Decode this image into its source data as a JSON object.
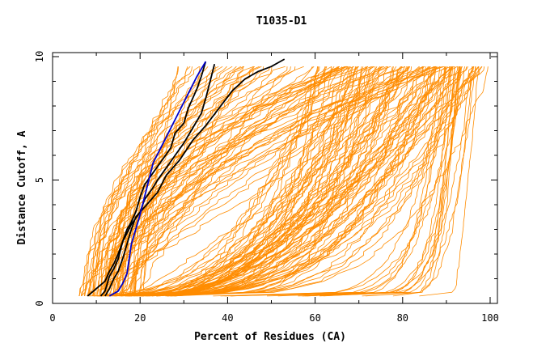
{
  "chart_data": {
    "type": "line",
    "title": "T1035-D1",
    "xlabel": "Percent of Residues (CA)",
    "ylabel": "Distance Cutoff, A",
    "xlim": [
      0,
      100
    ],
    "ylim": [
      0,
      10
    ],
    "x_ticks": [
      "0",
      "20",
      "40",
      "60",
      "80",
      "100"
    ],
    "y_ticks": [
      "0",
      "5",
      "10"
    ],
    "grid": false,
    "colors": {
      "background_models": "#ff8c00",
      "highlight_black": "#000000",
      "highlight_blue": "#0000cc"
    },
    "highlight_series": [
      {
        "color": "#000000",
        "points": [
          [
            8,
            0.3
          ],
          [
            10,
            0.6
          ],
          [
            12,
            0.9
          ],
          [
            13,
            1.3
          ],
          [
            14,
            1.6
          ],
          [
            15,
            2
          ],
          [
            16,
            2.5
          ],
          [
            17,
            3
          ],
          [
            18,
            3.3
          ],
          [
            19,
            3.7
          ],
          [
            20,
            4.3
          ],
          [
            21,
            4.8
          ],
          [
            23,
            5.3
          ],
          [
            25,
            5.8
          ],
          [
            27,
            6.3
          ],
          [
            28,
            6.9
          ],
          [
            30,
            7.3
          ],
          [
            31,
            7.9
          ],
          [
            33,
            8.7
          ],
          [
            34,
            9.2
          ],
          [
            35,
            9.8
          ]
        ]
      },
      {
        "color": "#000000",
        "points": [
          [
            11,
            0.3
          ],
          [
            12,
            0.5
          ],
          [
            13,
            1.1
          ],
          [
            14,
            1.4
          ],
          [
            15,
            1.8
          ],
          [
            16,
            2.5
          ],
          [
            18,
            3.2
          ],
          [
            20,
            3.7
          ],
          [
            21,
            4.2
          ],
          [
            23,
            4.7
          ],
          [
            24,
            5
          ],
          [
            26,
            5.5
          ],
          [
            28,
            6
          ],
          [
            30,
            6.5
          ],
          [
            32,
            7.1
          ],
          [
            34,
            7.7
          ],
          [
            35,
            8.3
          ],
          [
            36,
            9
          ],
          [
            37,
            9.7
          ]
        ]
      },
      {
        "color": "#000000",
        "points": [
          [
            12,
            0.3
          ],
          [
            13,
            0.6
          ],
          [
            14,
            1
          ],
          [
            15,
            1.3
          ],
          [
            16,
            1.8
          ],
          [
            17,
            2.4
          ],
          [
            18,
            3
          ],
          [
            19,
            3.5
          ],
          [
            21,
            3.9
          ],
          [
            24,
            4.5
          ],
          [
            26,
            5.2
          ],
          [
            29,
            5.8
          ],
          [
            32,
            6.6
          ],
          [
            35,
            7.2
          ],
          [
            38,
            7.9
          ],
          [
            41,
            8.6
          ],
          [
            44,
            9.1
          ],
          [
            47,
            9.4
          ],
          [
            50,
            9.6
          ],
          [
            52,
            9.8
          ],
          [
            53,
            9.9
          ]
        ]
      },
      {
        "color": "#0000cc",
        "points": [
          [
            13,
            0.3
          ],
          [
            15,
            0.5
          ],
          [
            16,
            0.8
          ],
          [
            17,
            1.2
          ],
          [
            17.5,
            1.8
          ],
          [
            18,
            2.4
          ],
          [
            19,
            3
          ],
          [
            20,
            3.6
          ],
          [
            21,
            4.3
          ],
          [
            22,
            5
          ],
          [
            23,
            5.7
          ],
          [
            25,
            6.4
          ],
          [
            27,
            7.1
          ],
          [
            29,
            7.8
          ],
          [
            31,
            8.5
          ],
          [
            33,
            9.2
          ],
          [
            35,
            9.8
          ]
        ]
      }
    ]
  }
}
